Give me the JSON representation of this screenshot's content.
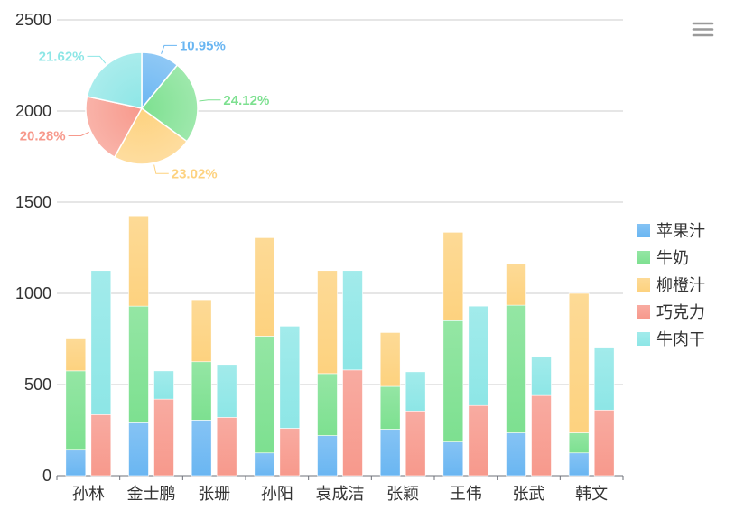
{
  "chart_data": [
    {
      "type": "bar",
      "stacked": true,
      "categories": [
        "孙林",
        "金士鹏",
        "张珊",
        "孙阳",
        "袁成洁",
        "张颖",
        "王伟",
        "张武",
        "韩文"
      ],
      "ylim": [
        0,
        2500
      ],
      "yticks": [
        0,
        500,
        1000,
        1500,
        2000,
        2500
      ],
      "grid": true,
      "legend_position": "right",
      "series": [
        {
          "name": "苹果汁",
          "color": "#6ab6f2",
          "stack": "a",
          "values": [
            140,
            290,
            305,
            125,
            220,
            255,
            185,
            235,
            125
          ]
        },
        {
          "name": "牛奶",
          "color": "#7de090",
          "stack": "a",
          "values": [
            435,
            640,
            320,
            640,
            340,
            235,
            665,
            700,
            110
          ]
        },
        {
          "name": "柳橙汁",
          "color": "#fdd27f",
          "stack": "a",
          "values": [
            175,
            495,
            340,
            540,
            565,
            295,
            485,
            225,
            765
          ]
        },
        {
          "name": "巧克力",
          "color": "#f7998c",
          "stack": "b",
          "values": [
            335,
            420,
            320,
            260,
            580,
            355,
            385,
            440,
            360
          ]
        },
        {
          "name": "牛肉干",
          "color": "#8de6e6",
          "stack": "b",
          "values": [
            790,
            155,
            290,
            560,
            545,
            215,
            545,
            215,
            345
          ]
        }
      ]
    },
    {
      "type": "pie",
      "slices": [
        {
          "label": "10.95%",
          "value": 10.95,
          "color": "#6ab6f2"
        },
        {
          "label": "24.12%",
          "value": 24.12,
          "color": "#7de090"
        },
        {
          "label": "23.02%",
          "value": 23.02,
          "color": "#fdd27f"
        },
        {
          "label": "20.28%",
          "value": 20.28,
          "color": "#f7998c"
        },
        {
          "label": "21.62%",
          "value": 21.62,
          "color": "#8de6e6"
        }
      ]
    }
  ],
  "toolbar": {
    "menu_icon": "hamburger-menu-icon"
  }
}
